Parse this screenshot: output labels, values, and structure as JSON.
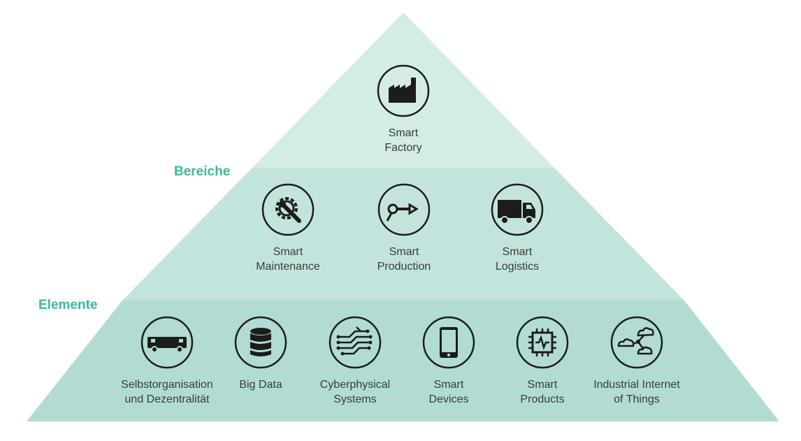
{
  "section_labels": {
    "bereiche": "Bereiche",
    "elemente": "Elemente"
  },
  "levels": {
    "top": [
      {
        "line1": "Smart",
        "line2": "Factory",
        "icon": "factory-icon"
      }
    ],
    "middle": [
      {
        "line1": "Smart",
        "line2": "Maintenance",
        "icon": "gear-wrench-icon"
      },
      {
        "line1": "Smart",
        "line2": "Production",
        "icon": "robot-arm-icon"
      },
      {
        "line1": "Smart",
        "line2": "Logistics",
        "icon": "truck-icon"
      }
    ],
    "bottom": [
      {
        "line1": "Selbstorganisation",
        "line2": "und Dezentralität",
        "icon": "autonomous-vehicle-icon"
      },
      {
        "line1": "Big Data",
        "line2": "",
        "icon": "database-icon"
      },
      {
        "line1": "Cyberphysical",
        "line2": "Systems",
        "icon": "circuit-icon"
      },
      {
        "line1": "Smart",
        "line2": "Devices",
        "icon": "tablet-icon"
      },
      {
        "line1": "Smart",
        "line2": "Products",
        "icon": "chip-icon"
      },
      {
        "line1": "Industrial Internet",
        "line2": "of Things",
        "icon": "cloud-network-icon"
      }
    ]
  },
  "colors": {
    "tier_top": "#d3ece6",
    "tier_middle": "#c3e4dd",
    "tier_bottom": "#b2dcd3",
    "label_accent": "#3fb79b",
    "icon_stroke": "#1c1c1c"
  }
}
